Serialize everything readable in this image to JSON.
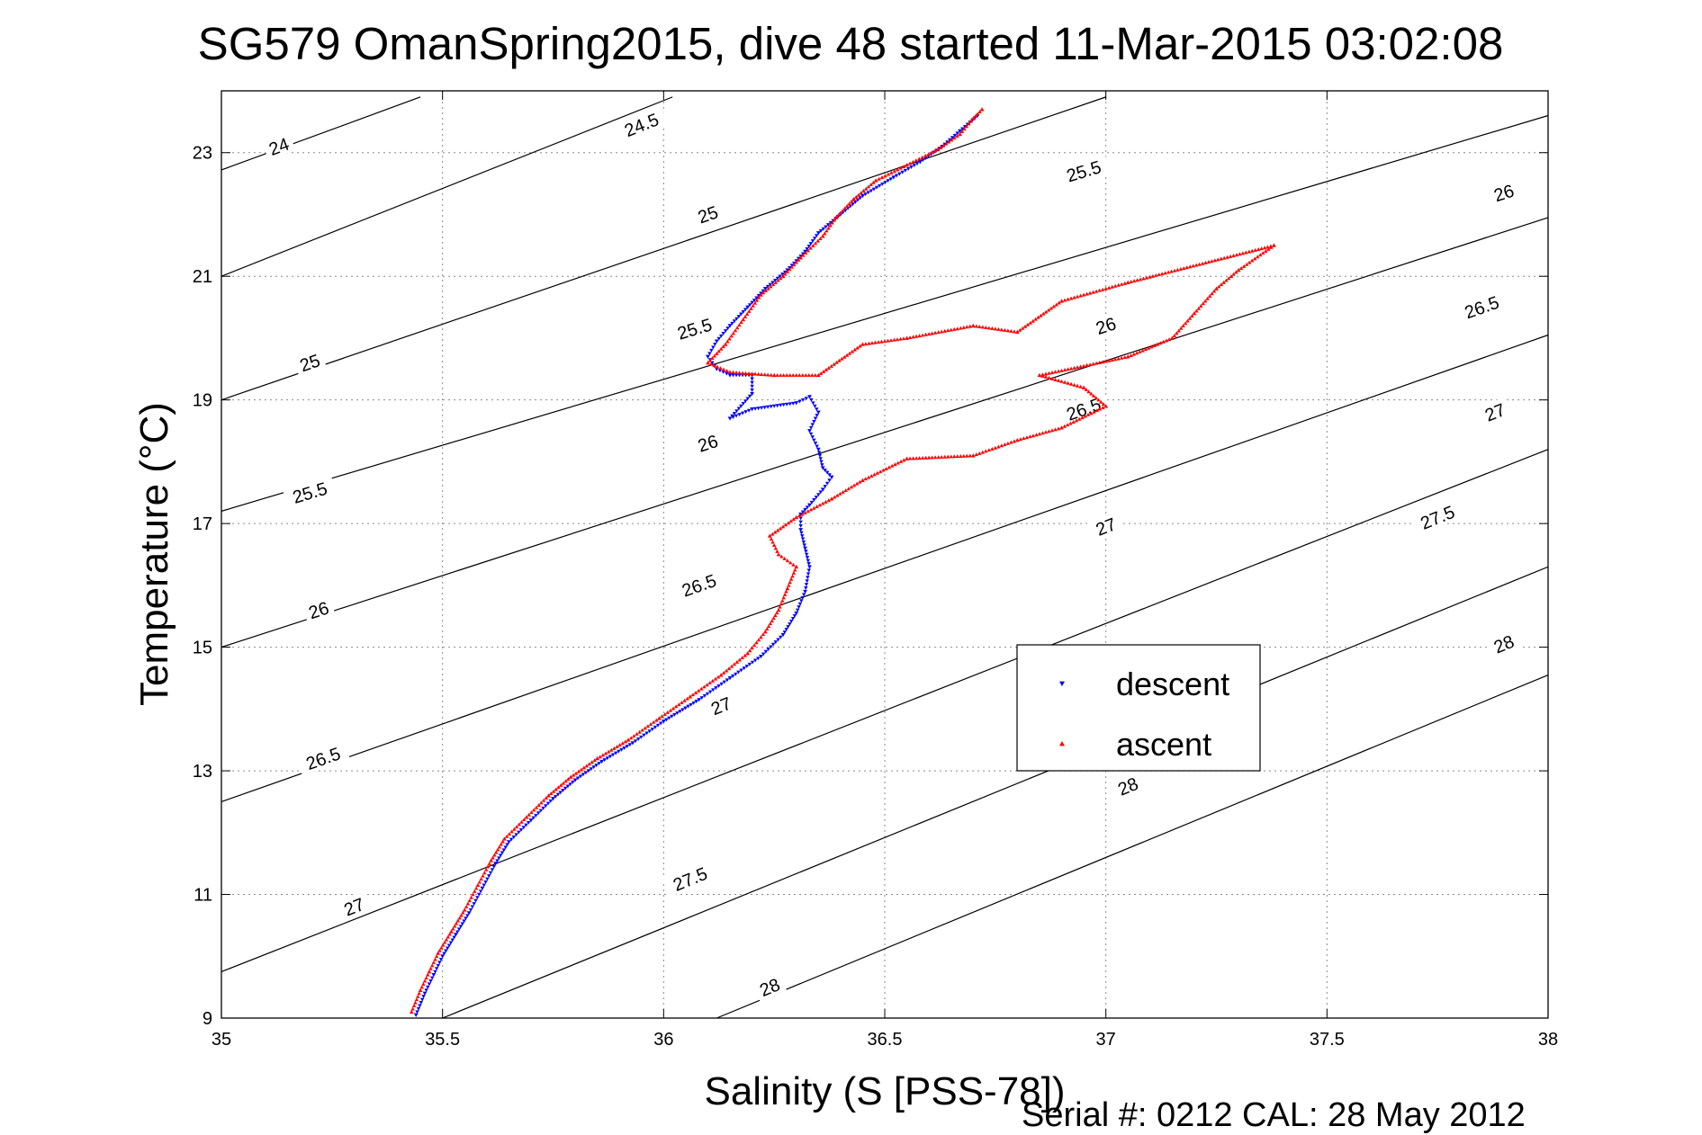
{
  "chart_data": {
    "type": "scatter",
    "title": "SG579 OmanSpring2015, dive 48 started 11-Mar-2015 03:02:08",
    "xlabel": "Salinity (S [PSS-78])",
    "ylabel": "Temperature (°C)",
    "xlim": [
      35,
      38
    ],
    "ylim": [
      9,
      24
    ],
    "x_ticks": [
      "35",
      "35.5",
      "36",
      "36.5",
      "37",
      "37.5",
      "38"
    ],
    "y_ticks": [
      "9",
      "11",
      "13",
      "15",
      "17",
      "19",
      "21",
      "23"
    ],
    "grid": true,
    "legend": {
      "position": "center-right",
      "entries": [
        "descent",
        "ascent"
      ]
    },
    "colors": {
      "descent": "#0000ff",
      "ascent": "#ff0000"
    },
    "footer": "Serial #: 0212  CAL: 28 May 2012",
    "series": [
      {
        "name": "descent",
        "marker": "down-triangle",
        "points": [
          [
            35.44,
            9.05
          ],
          [
            35.46,
            9.4
          ],
          [
            35.48,
            9.7
          ],
          [
            35.5,
            10.0
          ],
          [
            35.53,
            10.35
          ],
          [
            35.56,
            10.7
          ],
          [
            35.59,
            11.1
          ],
          [
            35.62,
            11.5
          ],
          [
            35.65,
            11.85
          ],
          [
            35.7,
            12.2
          ],
          [
            35.75,
            12.55
          ],
          [
            35.8,
            12.85
          ],
          [
            35.86,
            13.15
          ],
          [
            35.93,
            13.45
          ],
          [
            36.0,
            13.8
          ],
          [
            36.08,
            14.15
          ],
          [
            36.15,
            14.5
          ],
          [
            36.22,
            14.85
          ],
          [
            36.27,
            15.2
          ],
          [
            36.3,
            15.55
          ],
          [
            36.32,
            15.9
          ],
          [
            36.33,
            16.3
          ],
          [
            36.32,
            16.6
          ],
          [
            36.31,
            16.9
          ],
          [
            36.31,
            17.15
          ],
          [
            36.33,
            17.3
          ],
          [
            36.36,
            17.55
          ],
          [
            36.38,
            17.75
          ],
          [
            36.36,
            17.9
          ],
          [
            36.35,
            18.2
          ],
          [
            36.33,
            18.5
          ],
          [
            36.35,
            18.8
          ],
          [
            36.33,
            19.05
          ],
          [
            36.3,
            18.95
          ],
          [
            36.2,
            18.85
          ],
          [
            36.15,
            18.7
          ],
          [
            36.2,
            19.1
          ],
          [
            36.2,
            19.4
          ],
          [
            36.15,
            19.4
          ],
          [
            36.12,
            19.5
          ],
          [
            36.1,
            19.7
          ],
          [
            36.12,
            19.95
          ],
          [
            36.15,
            20.2
          ],
          [
            36.19,
            20.5
          ],
          [
            36.23,
            20.8
          ],
          [
            36.28,
            21.1
          ],
          [
            36.32,
            21.4
          ],
          [
            36.35,
            21.7
          ],
          [
            36.4,
            22.0
          ],
          [
            36.45,
            22.3
          ],
          [
            36.52,
            22.6
          ],
          [
            36.58,
            22.85
          ],
          [
            36.63,
            23.1
          ],
          [
            36.67,
            23.35
          ],
          [
            36.71,
            23.6
          ]
        ]
      },
      {
        "name": "ascent",
        "marker": "up-triangle",
        "points": [
          [
            35.43,
            9.1
          ],
          [
            35.45,
            9.45
          ],
          [
            35.47,
            9.75
          ],
          [
            35.49,
            10.05
          ],
          [
            35.52,
            10.4
          ],
          [
            35.55,
            10.75
          ],
          [
            35.58,
            11.15
          ],
          [
            35.61,
            11.55
          ],
          [
            35.64,
            11.9
          ],
          [
            35.69,
            12.25
          ],
          [
            35.74,
            12.6
          ],
          [
            35.79,
            12.9
          ],
          [
            35.85,
            13.2
          ],
          [
            35.92,
            13.5
          ],
          [
            35.99,
            13.85
          ],
          [
            36.06,
            14.2
          ],
          [
            36.13,
            14.55
          ],
          [
            36.19,
            14.9
          ],
          [
            36.23,
            15.25
          ],
          [
            36.26,
            15.6
          ],
          [
            36.28,
            15.95
          ],
          [
            36.3,
            16.3
          ],
          [
            36.26,
            16.5
          ],
          [
            36.24,
            16.8
          ],
          [
            36.3,
            17.1
          ],
          [
            36.38,
            17.4
          ],
          [
            36.45,
            17.7
          ],
          [
            36.55,
            18.05
          ],
          [
            36.7,
            18.1
          ],
          [
            36.8,
            18.35
          ],
          [
            36.9,
            18.55
          ],
          [
            37.0,
            18.9
          ],
          [
            36.95,
            19.2
          ],
          [
            36.85,
            19.4
          ],
          [
            37.05,
            19.7
          ],
          [
            37.15,
            20.0
          ],
          [
            37.2,
            20.4
          ],
          [
            37.25,
            20.8
          ],
          [
            37.3,
            21.1
          ],
          [
            37.38,
            21.5
          ],
          [
            37.05,
            20.9
          ],
          [
            36.9,
            20.6
          ],
          [
            36.8,
            20.1
          ],
          [
            36.7,
            20.2
          ],
          [
            36.55,
            20.0
          ],
          [
            36.45,
            19.9
          ],
          [
            36.35,
            19.4
          ],
          [
            36.25,
            19.4
          ],
          [
            36.15,
            19.45
          ],
          [
            36.1,
            19.6
          ],
          [
            36.14,
            19.9
          ],
          [
            36.18,
            20.3
          ],
          [
            36.22,
            20.7
          ],
          [
            36.27,
            21.0
          ],
          [
            36.31,
            21.3
          ],
          [
            36.36,
            21.65
          ],
          [
            36.39,
            21.95
          ],
          [
            36.43,
            22.25
          ],
          [
            36.48,
            22.55
          ],
          [
            36.55,
            22.8
          ],
          [
            36.62,
            23.05
          ],
          [
            36.67,
            23.3
          ],
          [
            36.7,
            23.55
          ],
          [
            36.72,
            23.7
          ]
        ]
      }
    ],
    "contours": [
      {
        "level": 24,
        "label": "24",
        "points": [
          [
            35.0,
            22.72
          ],
          [
            35.45,
            23.9
          ]
        ],
        "label_at": [
          35.13,
          23.1
        ]
      },
      {
        "level": 24.5,
        "label": "24.5",
        "points": [
          [
            35.0,
            21.0
          ],
          [
            36.02,
            23.9
          ]
        ],
        "label_at": [
          35.95,
          23.45
        ]
      },
      {
        "level": 25,
        "label": "25",
        "points": [
          [
            35.0,
            19.0
          ],
          [
            37.0,
            23.9
          ]
        ],
        "label_at": [
          36.1,
          22.0
        ]
      },
      {
        "level": 25,
        "label": "25",
        "points": [
          [
            35.0,
            19.0
          ],
          [
            37.0,
            23.9
          ]
        ],
        "label_at": [
          35.2,
          19.6
        ]
      },
      {
        "level": 25.5,
        "label": "25.5",
        "points": [
          [
            35.0,
            17.2
          ],
          [
            38.0,
            23.6
          ]
        ],
        "label_at": [
          36.95,
          22.7
        ]
      },
      {
        "level": 25.5,
        "label": "25.5",
        "points": [
          [
            35.0,
            17.2
          ],
          [
            38.0,
            23.6
          ]
        ],
        "label_at": [
          36.07,
          20.15
        ]
      },
      {
        "level": 25.5,
        "label": "25.5",
        "points": [
          [
            35.0,
            17.2
          ],
          [
            38.0,
            23.6
          ]
        ],
        "label_at": [
          35.2,
          17.5
        ]
      },
      {
        "level": 26,
        "label": "26",
        "points": [
          [
            35.0,
            15.0
          ],
          [
            38.0,
            21.95
          ]
        ],
        "label_at": [
          37.9,
          22.35
        ]
      },
      {
        "level": 26,
        "label": "26",
        "points": [
          [
            35.0,
            15.0
          ],
          [
            38.0,
            21.95
          ]
        ],
        "label_at": [
          37.0,
          20.2
        ]
      },
      {
        "level": 26,
        "label": "26",
        "points": [
          [
            35.0,
            15.0
          ],
          [
            38.0,
            21.95
          ]
        ],
        "label_at": [
          36.1,
          18.3
        ]
      },
      {
        "level": 26,
        "label": "26",
        "points": [
          [
            35.0,
            15.0
          ],
          [
            38.0,
            21.95
          ]
        ],
        "label_at": [
          35.22,
          15.6
        ]
      },
      {
        "level": 26.5,
        "label": "26.5",
        "points": [
          [
            35.0,
            12.5
          ],
          [
            38.0,
            20.05
          ]
        ],
        "label_at": [
          37.85,
          20.5
        ]
      },
      {
        "level": 26.5,
        "label": "26.5",
        "points": [
          [
            35.0,
            12.5
          ],
          [
            38.0,
            20.05
          ]
        ],
        "label_at": [
          36.95,
          18.85
        ]
      },
      {
        "level": 26.5,
        "label": "26.5",
        "points": [
          [
            35.0,
            12.5
          ],
          [
            38.0,
            20.05
          ]
        ],
        "label_at": [
          36.08,
          16.0
        ]
      },
      {
        "level": 26.5,
        "label": "26.5",
        "points": [
          [
            35.0,
            12.5
          ],
          [
            38.0,
            20.05
          ]
        ],
        "label_at": [
          35.23,
          13.2
        ]
      },
      {
        "level": 27,
        "label": "27",
        "points": [
          [
            35.0,
            9.75
          ],
          [
            38.0,
            18.2
          ]
        ],
        "label_at": [
          37.88,
          18.8
        ]
      },
      {
        "level": 27,
        "label": "27",
        "points": [
          [
            35.0,
            9.75
          ],
          [
            38.0,
            18.2
          ]
        ],
        "label_at": [
          37.0,
          16.95
        ]
      },
      {
        "level": 27,
        "label": "27",
        "points": [
          [
            35.0,
            9.75
          ],
          [
            38.0,
            18.2
          ]
        ],
        "label_at": [
          36.13,
          14.05
        ]
      },
      {
        "level": 27,
        "label": "27",
        "points": [
          [
            35.0,
            9.75
          ],
          [
            38.0,
            18.2
          ]
        ],
        "label_at": [
          35.3,
          10.8
        ]
      },
      {
        "level": 27.5,
        "label": "27.5",
        "points": [
          [
            35.5,
            9.0
          ],
          [
            38.0,
            16.3
          ]
        ],
        "label_at": [
          37.75,
          17.1
        ]
      },
      {
        "level": 27.5,
        "label": "27.5",
        "points": [
          [
            35.5,
            9.0
          ],
          [
            38.0,
            16.3
          ]
        ],
        "label_at": [
          36.06,
          11.25
        ]
      },
      {
        "level": 28,
        "label": "28",
        "points": [
          [
            36.12,
            9.0
          ],
          [
            38.0,
            14.55
          ]
        ],
        "label_at": [
          37.9,
          15.05
        ]
      },
      {
        "level": 28,
        "label": "28",
        "points": [
          [
            36.12,
            9.0
          ],
          [
            38.0,
            14.55
          ]
        ],
        "label_at": [
          37.05,
          12.75
        ]
      },
      {
        "level": 28,
        "label": "28",
        "points": [
          [
            36.12,
            9.0
          ],
          [
            38.0,
            14.55
          ]
        ],
        "label_at": [
          36.24,
          9.5
        ]
      }
    ]
  }
}
